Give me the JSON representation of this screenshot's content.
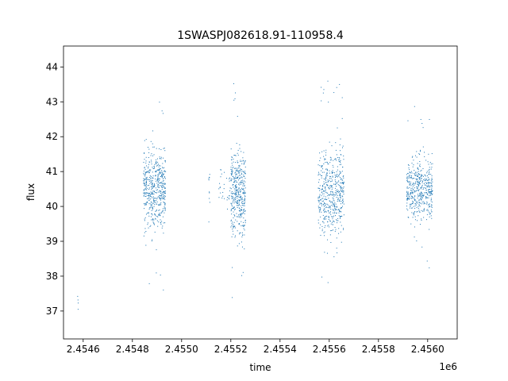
{
  "chart_data": {
    "type": "scatter",
    "title": "1SWASPJ082618.91-110958.4",
    "xlabel": "time",
    "ylabel": "flux",
    "x_offset_label": "1e6",
    "xlim": [
      2454520,
      2456120
    ],
    "ylim": [
      36.2,
      44.6
    ],
    "x_ticks": [
      2454600,
      2454800,
      2455000,
      2455200,
      2455400,
      2455600,
      2455800,
      2456000
    ],
    "x_tick_labels": [
      "2.4546",
      "2.4548",
      "2.4550",
      "2.4552",
      "2.4554",
      "2.4556",
      "2.4558",
      "2.4560"
    ],
    "y_ticks": [
      37,
      38,
      39,
      40,
      41,
      42,
      43,
      44
    ],
    "y_tick_labels": [
      "37",
      "38",
      "39",
      "40",
      "41",
      "42",
      "43",
      "44"
    ],
    "grid": false,
    "marker_color": "#1f77b4",
    "clusters": [
      {
        "x_range": [
          2454577,
          2454580
        ],
        "y_center": 37.2,
        "y_spread": 0.2,
        "count": 4
      },
      {
        "x_range": [
          2454845,
          2454935
        ],
        "y_center": 40.5,
        "y_spread": 1.0,
        "count": 520
      },
      {
        "x_range": [
          2455110,
          2455115
        ],
        "y_center": 40.6,
        "y_spread": 0.6,
        "count": 10
      },
      {
        "x_range": [
          2455150,
          2455200
        ],
        "y_center": 40.5,
        "y_spread": 0.5,
        "count": 30
      },
      {
        "x_range": [
          2455200,
          2455260
        ],
        "y_center": 40.4,
        "y_spread": 1.1,
        "count": 420
      },
      {
        "x_range": [
          2455555,
          2455660
        ],
        "y_center": 40.4,
        "y_spread": 1.1,
        "count": 520
      },
      {
        "x_range": [
          2455915,
          2456020
        ],
        "y_center": 40.5,
        "y_spread": 0.8,
        "count": 480
      }
    ]
  }
}
